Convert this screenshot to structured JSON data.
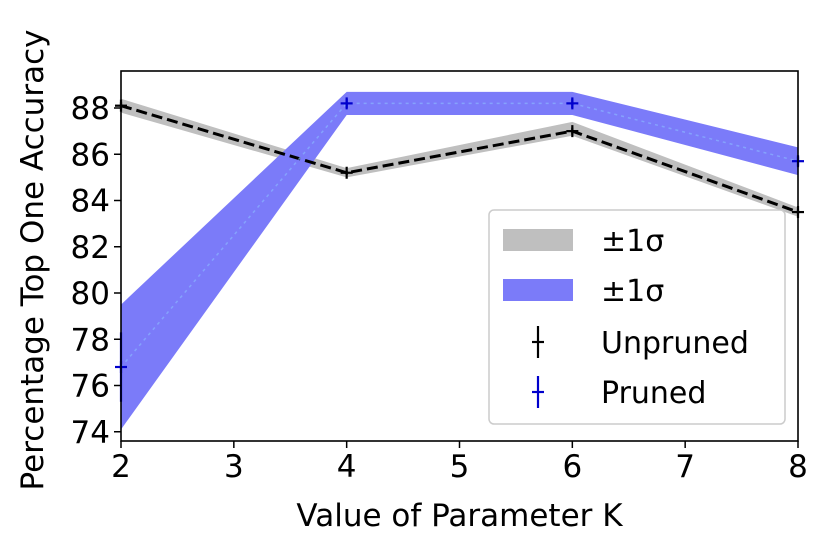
{
  "chart_data": {
    "type": "line",
    "title": "",
    "xlabel": "Value of Parameter K",
    "ylabel": "Percentage Top One Accuracy",
    "xlim": [
      2,
      8
    ],
    "ylim": [
      73.6,
      89.6
    ],
    "xticks": [
      2,
      3,
      4,
      5,
      6,
      7,
      8
    ],
    "yticks": [
      74,
      76,
      78,
      80,
      82,
      84,
      86,
      88
    ],
    "grid": false,
    "legend_position": "bottom-right",
    "x": [
      2,
      4,
      6,
      8
    ],
    "series": [
      {
        "name": "Unpruned",
        "values": [
          88.1,
          85.2,
          87.0,
          83.5
        ],
        "errors": [
          0.15,
          0.1,
          0.15,
          0.1
        ],
        "band_lower": [
          87.8,
          85.0,
          86.8,
          83.3
        ],
        "band_upper": [
          88.4,
          85.4,
          87.4,
          83.7
        ],
        "color": "#000000",
        "band_color": "#bfbfbf",
        "band_label": "±1σ",
        "linestyle": "dashed"
      },
      {
        "name": "Pruned",
        "values": [
          76.8,
          88.2,
          88.2,
          85.7
        ],
        "errors": [
          1.5,
          0.2,
          0.2,
          0.2
        ],
        "band_lower": [
          74.1,
          87.7,
          87.7,
          85.1
        ],
        "band_upper": [
          79.5,
          88.7,
          88.7,
          86.3
        ],
        "color": "#0000cc",
        "band_color": "#7b7bf9",
        "band_label": "±1σ",
        "linestyle": "dotted"
      }
    ]
  }
}
